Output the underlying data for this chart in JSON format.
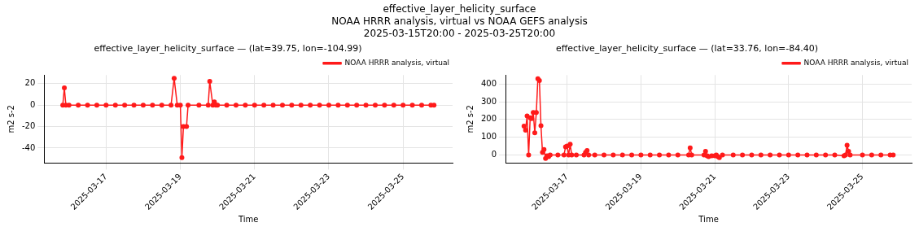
{
  "chart_data": [
    {
      "type": "line",
      "title": "effective_layer_helicity_surface — (lat=39.75, lon=-104.99)",
      "xlabel": "Time",
      "ylabel": "m2 s-2",
      "annotations": [
        "effective_layer_helicity_surface",
        "NOAA HRRR analysis, virtual vs NOAA GEFS analysis",
        "2025-03-15T20:00 - 2025-03-25T20:00"
      ],
      "series": [
        {
          "name": "NOAA HRRR analysis, virtual",
          "color": "#ff1a1a",
          "x": [
            "2025-03-15T20:00",
            "2025-03-15T21:00",
            "2025-03-15T22:00",
            "2025-03-16T00:00",
            "2025-03-16T06:00",
            "2025-03-16T12:00",
            "2025-03-16T18:00",
            "2025-03-17T00:00",
            "2025-03-17T06:00",
            "2025-03-17T12:00",
            "2025-03-17T18:00",
            "2025-03-18T00:00",
            "2025-03-18T06:00",
            "2025-03-18T12:00",
            "2025-03-18T18:00",
            "2025-03-18T20:00",
            "2025-03-18T22:00",
            "2025-03-19T00:00",
            "2025-03-19T01:00",
            "2025-03-19T02:00",
            "2025-03-19T04:00",
            "2025-03-19T05:00",
            "2025-03-19T12:00",
            "2025-03-19T18:00",
            "2025-03-19T19:00",
            "2025-03-19T21:00",
            "2025-03-19T22:00",
            "2025-03-19T23:00",
            "2025-03-20T00:00",
            "2025-03-20T06:00",
            "2025-03-20T12:00",
            "2025-03-20T18:00",
            "2025-03-21T00:00",
            "2025-03-21T06:00",
            "2025-03-21T12:00",
            "2025-03-21T18:00",
            "2025-03-22T00:00",
            "2025-03-22T06:00",
            "2025-03-22T12:00",
            "2025-03-22T18:00",
            "2025-03-23T00:00",
            "2025-03-23T06:00",
            "2025-03-23T12:00",
            "2025-03-23T18:00",
            "2025-03-24T00:00",
            "2025-03-24T06:00",
            "2025-03-24T12:00",
            "2025-03-24T18:00",
            "2025-03-25T00:00",
            "2025-03-25T06:00",
            "2025-03-25T12:00",
            "2025-03-25T18:00",
            "2025-03-25T20:00"
          ],
          "values": [
            0,
            16,
            0,
            0,
            0,
            0,
            0,
            0,
            0,
            0,
            0,
            0,
            0,
            0,
            0,
            25,
            0,
            0,
            -49,
            -20,
            -20,
            0,
            0,
            0,
            22,
            0,
            3,
            0,
            0,
            0,
            0,
            0,
            0,
            0,
            0,
            0,
            0,
            0,
            0,
            0,
            0,
            0,
            0,
            0,
            0,
            0,
            0,
            0,
            0,
            0,
            0,
            0,
            0
          ]
        }
      ],
      "xlim": [
        "2025-03-15T08:00",
        "2025-03-26T08:00"
      ],
      "xticks": [
        "2025-03-17",
        "2025-03-19",
        "2025-03-21",
        "2025-03-23",
        "2025-03-25"
      ],
      "ylim": [
        -54,
        28
      ],
      "yticks": [
        -40,
        -20,
        0,
        20
      ],
      "grid": true,
      "legend": "top right",
      "marker": "circle",
      "line_style": "solid"
    },
    {
      "type": "line",
      "title": "effective_layer_helicity_surface — (lat=33.76, lon=-84.40)",
      "xlabel": "Time",
      "ylabel": "m2 s-2",
      "series": [
        {
          "name": "NOAA HRRR analysis, virtual",
          "color": "#ff1a1a",
          "x": [
            "2025-03-15T20:00",
            "2025-03-15T21:00",
            "2025-03-15T22:00",
            "2025-03-15T23:00",
            "2025-03-16T00:00",
            "2025-03-16T01:00",
            "2025-03-16T02:00",
            "2025-03-16T03:00",
            "2025-03-16T04:00",
            "2025-03-16T05:00",
            "2025-03-16T06:00",
            "2025-03-16T07:00",
            "2025-03-16T08:00",
            "2025-03-16T09:00",
            "2025-03-16T10:00",
            "2025-03-16T11:00",
            "2025-03-16T12:00",
            "2025-03-16T13:00",
            "2025-03-16T18:00",
            "2025-03-16T22:00",
            "2025-03-16T23:00",
            "2025-03-17T00:00",
            "2025-03-17T01:00",
            "2025-03-17T02:00",
            "2025-03-17T03:00",
            "2025-03-17T06:00",
            "2025-03-17T11:00",
            "2025-03-17T12:00",
            "2025-03-17T13:00",
            "2025-03-17T14:00",
            "2025-03-17T18:00",
            "2025-03-18T00:00",
            "2025-03-18T06:00",
            "2025-03-18T12:00",
            "2025-03-18T18:00",
            "2025-03-19T00:00",
            "2025-03-19T06:00",
            "2025-03-19T12:00",
            "2025-03-19T18:00",
            "2025-03-20T00:00",
            "2025-03-20T07:00",
            "2025-03-20T08:00",
            "2025-03-20T09:00",
            "2025-03-20T17:00",
            "2025-03-20T18:00",
            "2025-03-20T19:00",
            "2025-03-20T20:00",
            "2025-03-20T22:00",
            "2025-03-21T00:00",
            "2025-03-21T01:00",
            "2025-03-21T02:00",
            "2025-03-21T03:00",
            "2025-03-21T05:00",
            "2025-03-21T12:00",
            "2025-03-21T18:00",
            "2025-03-22T00:00",
            "2025-03-22T06:00",
            "2025-03-22T12:00",
            "2025-03-22T18:00",
            "2025-03-23T00:00",
            "2025-03-23T06:00",
            "2025-03-23T12:00",
            "2025-03-23T18:00",
            "2025-03-24T00:00",
            "2025-03-24T06:00",
            "2025-03-24T12:00",
            "2025-03-24T13:00",
            "2025-03-24T14:00",
            "2025-03-24T15:00",
            "2025-03-24T16:00",
            "2025-03-25T00:00",
            "2025-03-25T06:00",
            "2025-03-25T12:00",
            "2025-03-25T18:00",
            "2025-03-25T20:00"
          ],
          "values": [
            163,
            140,
            220,
            0,
            210,
            205,
            240,
            125,
            240,
            430,
            420,
            165,
            15,
            30,
            -20,
            -5,
            -10,
            0,
            0,
            0,
            45,
            50,
            0,
            60,
            0,
            0,
            0,
            15,
            25,
            0,
            0,
            0,
            0,
            0,
            0,
            0,
            0,
            0,
            0,
            0,
            0,
            40,
            0,
            0,
            20,
            -5,
            -10,
            -5,
            -5,
            0,
            -10,
            -15,
            0,
            0,
            0,
            0,
            0,
            0,
            0,
            0,
            0,
            0,
            0,
            0,
            0,
            -5,
            0,
            55,
            20,
            0,
            0,
            0,
            0,
            0,
            0
          ]
        }
      ],
      "xlim": [
        "2025-03-15T08:00",
        "2025-03-26T08:00"
      ],
      "xticks": [
        "2025-03-17",
        "2025-03-19",
        "2025-03-21",
        "2025-03-23",
        "2025-03-25"
      ],
      "ylim": [
        -46,
        451
      ],
      "yticks": [
        0,
        100,
        200,
        300,
        400
      ],
      "grid": true,
      "legend": "top right",
      "marker": "circle",
      "line_style": "solid"
    }
  ]
}
